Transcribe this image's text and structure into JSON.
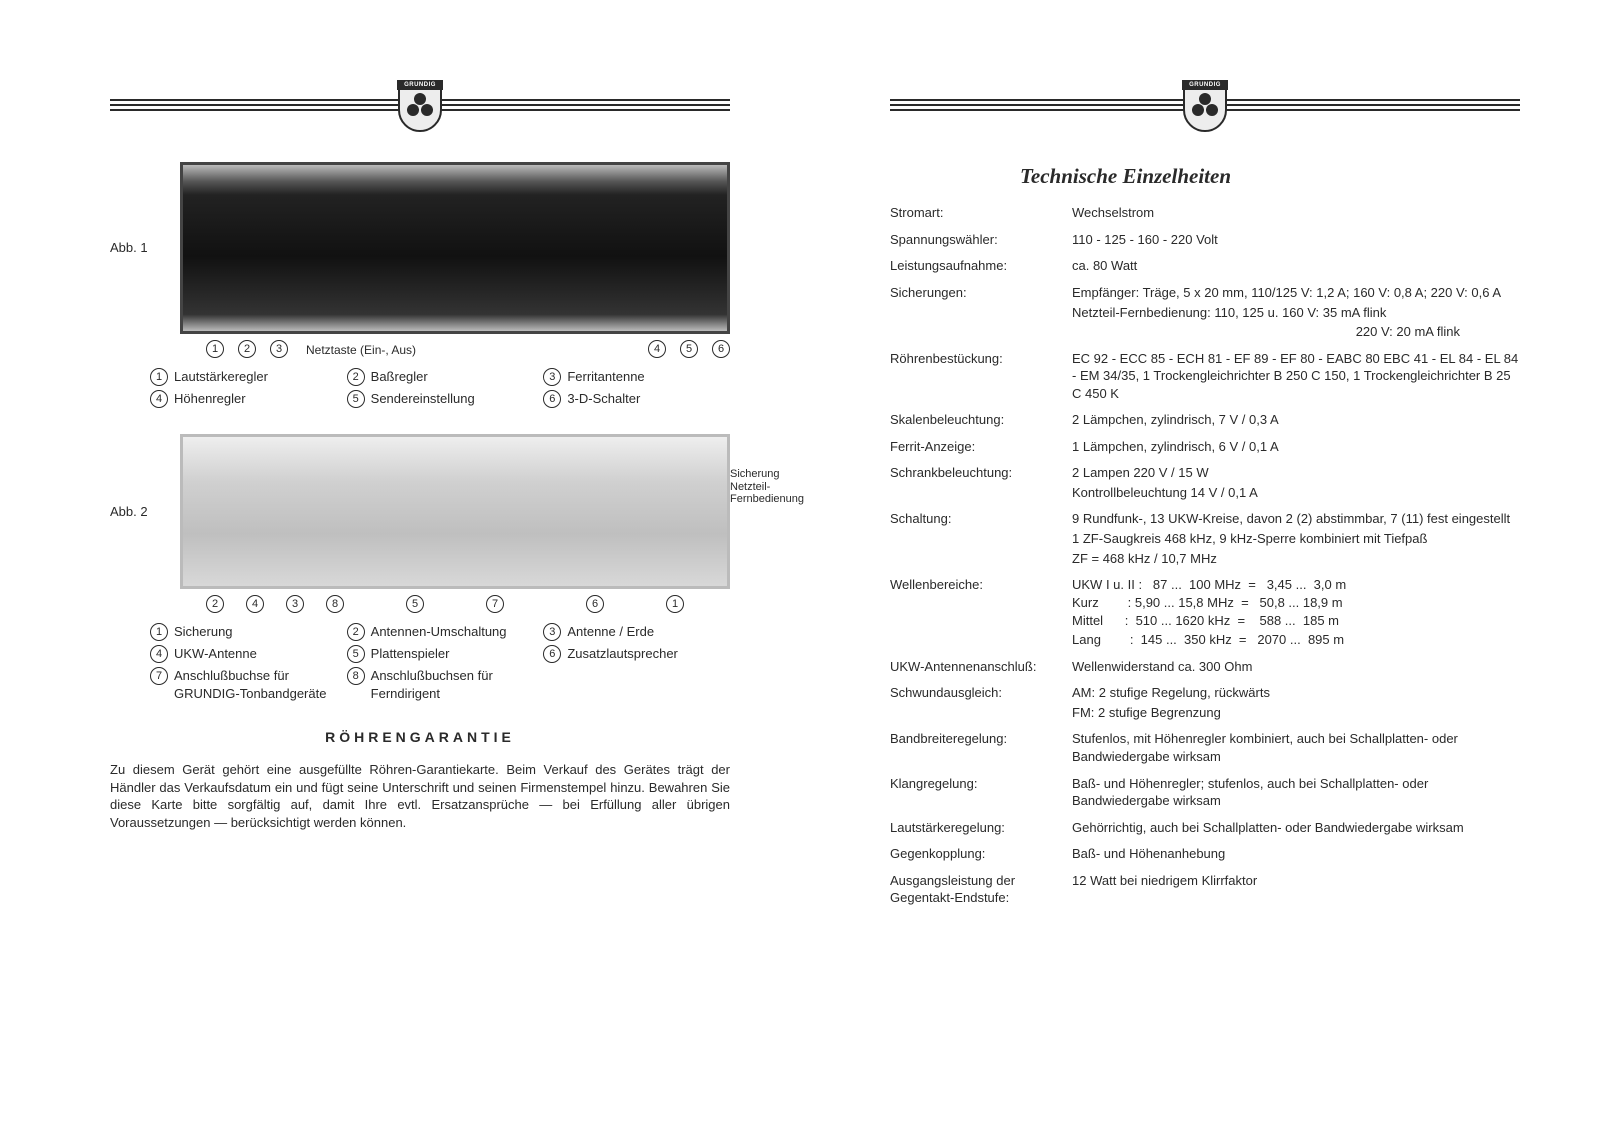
{
  "brand": "GRUNDIG",
  "left": {
    "fig1_label": "Abb. 1",
    "fig1_numbers": [
      "1",
      "2",
      "3",
      "4",
      "5",
      "6"
    ],
    "fig1_netz": "Netztaste (Ein-, Aus)",
    "fig1_legend": [
      {
        "n": "1",
        "t": "Lautstärkeregler"
      },
      {
        "n": "2",
        "t": "Baßregler"
      },
      {
        "n": "3",
        "t": "Ferritantenne"
      },
      {
        "n": "4",
        "t": "Höhenregler"
      },
      {
        "n": "5",
        "t": "Sendereinstellung"
      },
      {
        "n": "6",
        "t": "3-D-Schalter"
      }
    ],
    "fig2_label": "Abb. 2",
    "fig2_sidenote_l1": "Sicherung",
    "fig2_sidenote_l2": "Netzteil-",
    "fig2_sidenote_l3": "Fernbedienung",
    "fig2_numbers": [
      "2",
      "4",
      "3",
      "8",
      "5",
      "7",
      "6",
      "1"
    ],
    "fig2_legend": [
      {
        "n": "1",
        "t": "Sicherung"
      },
      {
        "n": "2",
        "t": "Antennen-Umschaltung"
      },
      {
        "n": "3",
        "t": "Antenne / Erde"
      },
      {
        "n": "4",
        "t": "UKW-Antenne"
      },
      {
        "n": "5",
        "t": "Plattenspieler"
      },
      {
        "n": "6",
        "t": "Zusatzlautsprecher"
      },
      {
        "n": "7",
        "t": "Anschlußbuchse für GRUNDIG-Tonbandgeräte"
      },
      {
        "n": "8",
        "t": "Anschlußbuchsen für Ferndirigent"
      }
    ],
    "warranty_title": "RÖHRENGARANTIE",
    "warranty_text": "Zu diesem Gerät gehört eine ausgefüllte Röhren-Garantiekarte. Beim Verkauf des Gerätes trägt der Händler das Verkaufsdatum ein und fügt seine Unterschrift und seinen Firmenstempel hinzu. Bewahren Sie diese Karte bitte sorgfältig auf, damit Ihre evtl. Ersatzansprüche — bei Erfüllung aller übrigen Voraussetzungen — berücksichtigt werden können."
  },
  "right": {
    "title": "Technische Einzelheiten",
    "specs": [
      {
        "label": "Stromart:",
        "value": "Wechselstrom"
      },
      {
        "label": "Spannungswähler:",
        "value": "110 - 125 - 160 - 220 Volt"
      },
      {
        "label": "Leistungsaufnahme:",
        "value": "ca. 80 Watt"
      },
      {
        "label": "Sicherungen:",
        "value": "Empfänger: Träge, 5 x 20 mm, 110/125 V: 1,2 A; 160 V: 0,8 A; 220 V: 0,6 A",
        "value2": "Netzteil-Fernbedienung: 110, 125 u. 160 V: 35 mA flink",
        "value3": "220 V: 20 mA flink",
        "v3_right": true
      },
      {
        "label": "Röhrenbestückung:",
        "value": "EC 92 - ECC 85 - ECH 81 - EF 89 - EF 80 - EABC 80 EBC 41 - EL 84 - EL 84 - EM 34/35, 1 Trockengleich­richter B 250 C 150, 1 Trockengleichrichter B 25 C 450 K"
      },
      {
        "label": "Skalenbeleuchtung:",
        "value": "2 Lämpchen, zylindrisch, 7 V / 0,3 A"
      },
      {
        "label": "Ferrit-Anzeige:",
        "value": "1 Lämpchen, zylindrisch, 6 V / 0,1 A"
      },
      {
        "label": "Schrankbeleuchtung:",
        "value": "2 Lampen 220 V / 15 W",
        "value2": "Kontrollbeleuchtung 14 V / 0,1 A"
      },
      {
        "label": "Schaltung:",
        "value": "9 Rundfunk-, 13 UKW-Kreise, davon 2 (2) abstimmbar, 7 (11) fest eingestellt",
        "value2": "1 ZF-Saugkreis 468 kHz, 9 kHz-Sperre kombiniert mit Tiefpaß",
        "value3": "ZF = 468 kHz / 10,7 MHz"
      },
      {
        "label": "Wellenbereiche:",
        "wavetable": "UKW I u. II :   87 ...  100 MHz  =   3,45 ...  3,0 m\nKurz        : 5,90 ... 15,8 MHz  =   50,8 ... 18,9 m\nMittel      :  510 ... 1620 kHz  =    588 ...  185 m\nLang        :  145 ...  350 kHz  =   2070 ...  895 m"
      },
      {
        "label": "UKW-Antennenanschluß:",
        "value": "Wellenwiderstand ca. 300 Ohm"
      },
      {
        "label": "Schwundausgleich:",
        "value": "AM: 2 stufige Regelung, rückwärts",
        "value2": "FM: 2 stufige Begrenzung"
      },
      {
        "label": "Bandbreiteregelung:",
        "value": "Stufenlos, mit Höhenregler kombiniert, auch bei Schallplatten- oder Bandwiedergabe wirksam"
      },
      {
        "label": "Klangregelung:",
        "value": "Baß- und Höhenregler; stufenlos, auch bei Schall­platten- oder Bandwiedergabe wirksam"
      },
      {
        "label": "Lautstärkeregelung:",
        "value": "Gehörrichtig, auch bei Schallplatten- oder Band­wiedergabe wirksam"
      },
      {
        "label": "Gegenkopplung:",
        "value": "Baß- und Höhenanhebung"
      },
      {
        "label": "Ausgangsleistung der Gegentakt-Endstufe:",
        "value": "12 Watt bei niedrigem Klirrfaktor"
      }
    ]
  }
}
